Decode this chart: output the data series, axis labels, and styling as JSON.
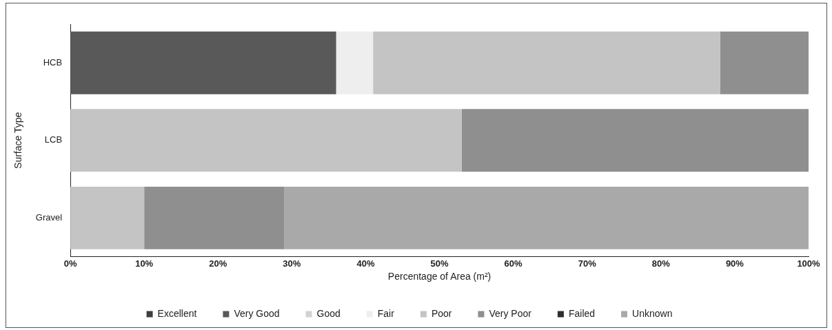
{
  "chart_data": {
    "type": "bar",
    "orientation": "horizontal",
    "stacked": true,
    "xlabel": "Percentage of Area (m²)",
    "ylabel": "Surface Type",
    "categories": [
      "HCB",
      "LCB",
      "Gravel"
    ],
    "series": [
      {
        "name": "Excellent",
        "color": "#3f3f3f",
        "values": [
          0,
          0,
          0
        ]
      },
      {
        "name": "Very Good",
        "color": "#595959",
        "values": [
          36,
          0,
          0
        ]
      },
      {
        "name": "Good",
        "color": "#d2d2d2",
        "values": [
          0,
          0,
          0
        ]
      },
      {
        "name": "Fair",
        "color": "#eeeeee",
        "values": [
          5,
          0,
          0
        ]
      },
      {
        "name": "Poor",
        "color": "#c4c4c4",
        "values": [
          47,
          53,
          10
        ]
      },
      {
        "name": "Very Poor",
        "color": "#8f8f8f",
        "values": [
          12,
          47,
          19
        ]
      },
      {
        "name": "Failed",
        "color": "#2e2e2e",
        "values": [
          0,
          0,
          0
        ]
      },
      {
        "name": "Unknown",
        "color": "#a9a9a9",
        "values": [
          0,
          0,
          71
        ]
      }
    ],
    "xlim": [
      0,
      100
    ],
    "xticks": [
      {
        "value": 0,
        "label": "0%"
      },
      {
        "value": 10,
        "label": "10%"
      },
      {
        "value": 20,
        "label": "20%"
      },
      {
        "value": 30,
        "label": "30%"
      },
      {
        "value": 40,
        "label": "40%"
      },
      {
        "value": 50,
        "label": "50%"
      },
      {
        "value": 60,
        "label": "60%"
      },
      {
        "value": 70,
        "label": "70%"
      },
      {
        "value": 80,
        "label": "80%"
      },
      {
        "value": 90,
        "label": "90%"
      },
      {
        "value": 100,
        "label": "100%"
      }
    ],
    "grid": false,
    "legend": "bottom"
  }
}
